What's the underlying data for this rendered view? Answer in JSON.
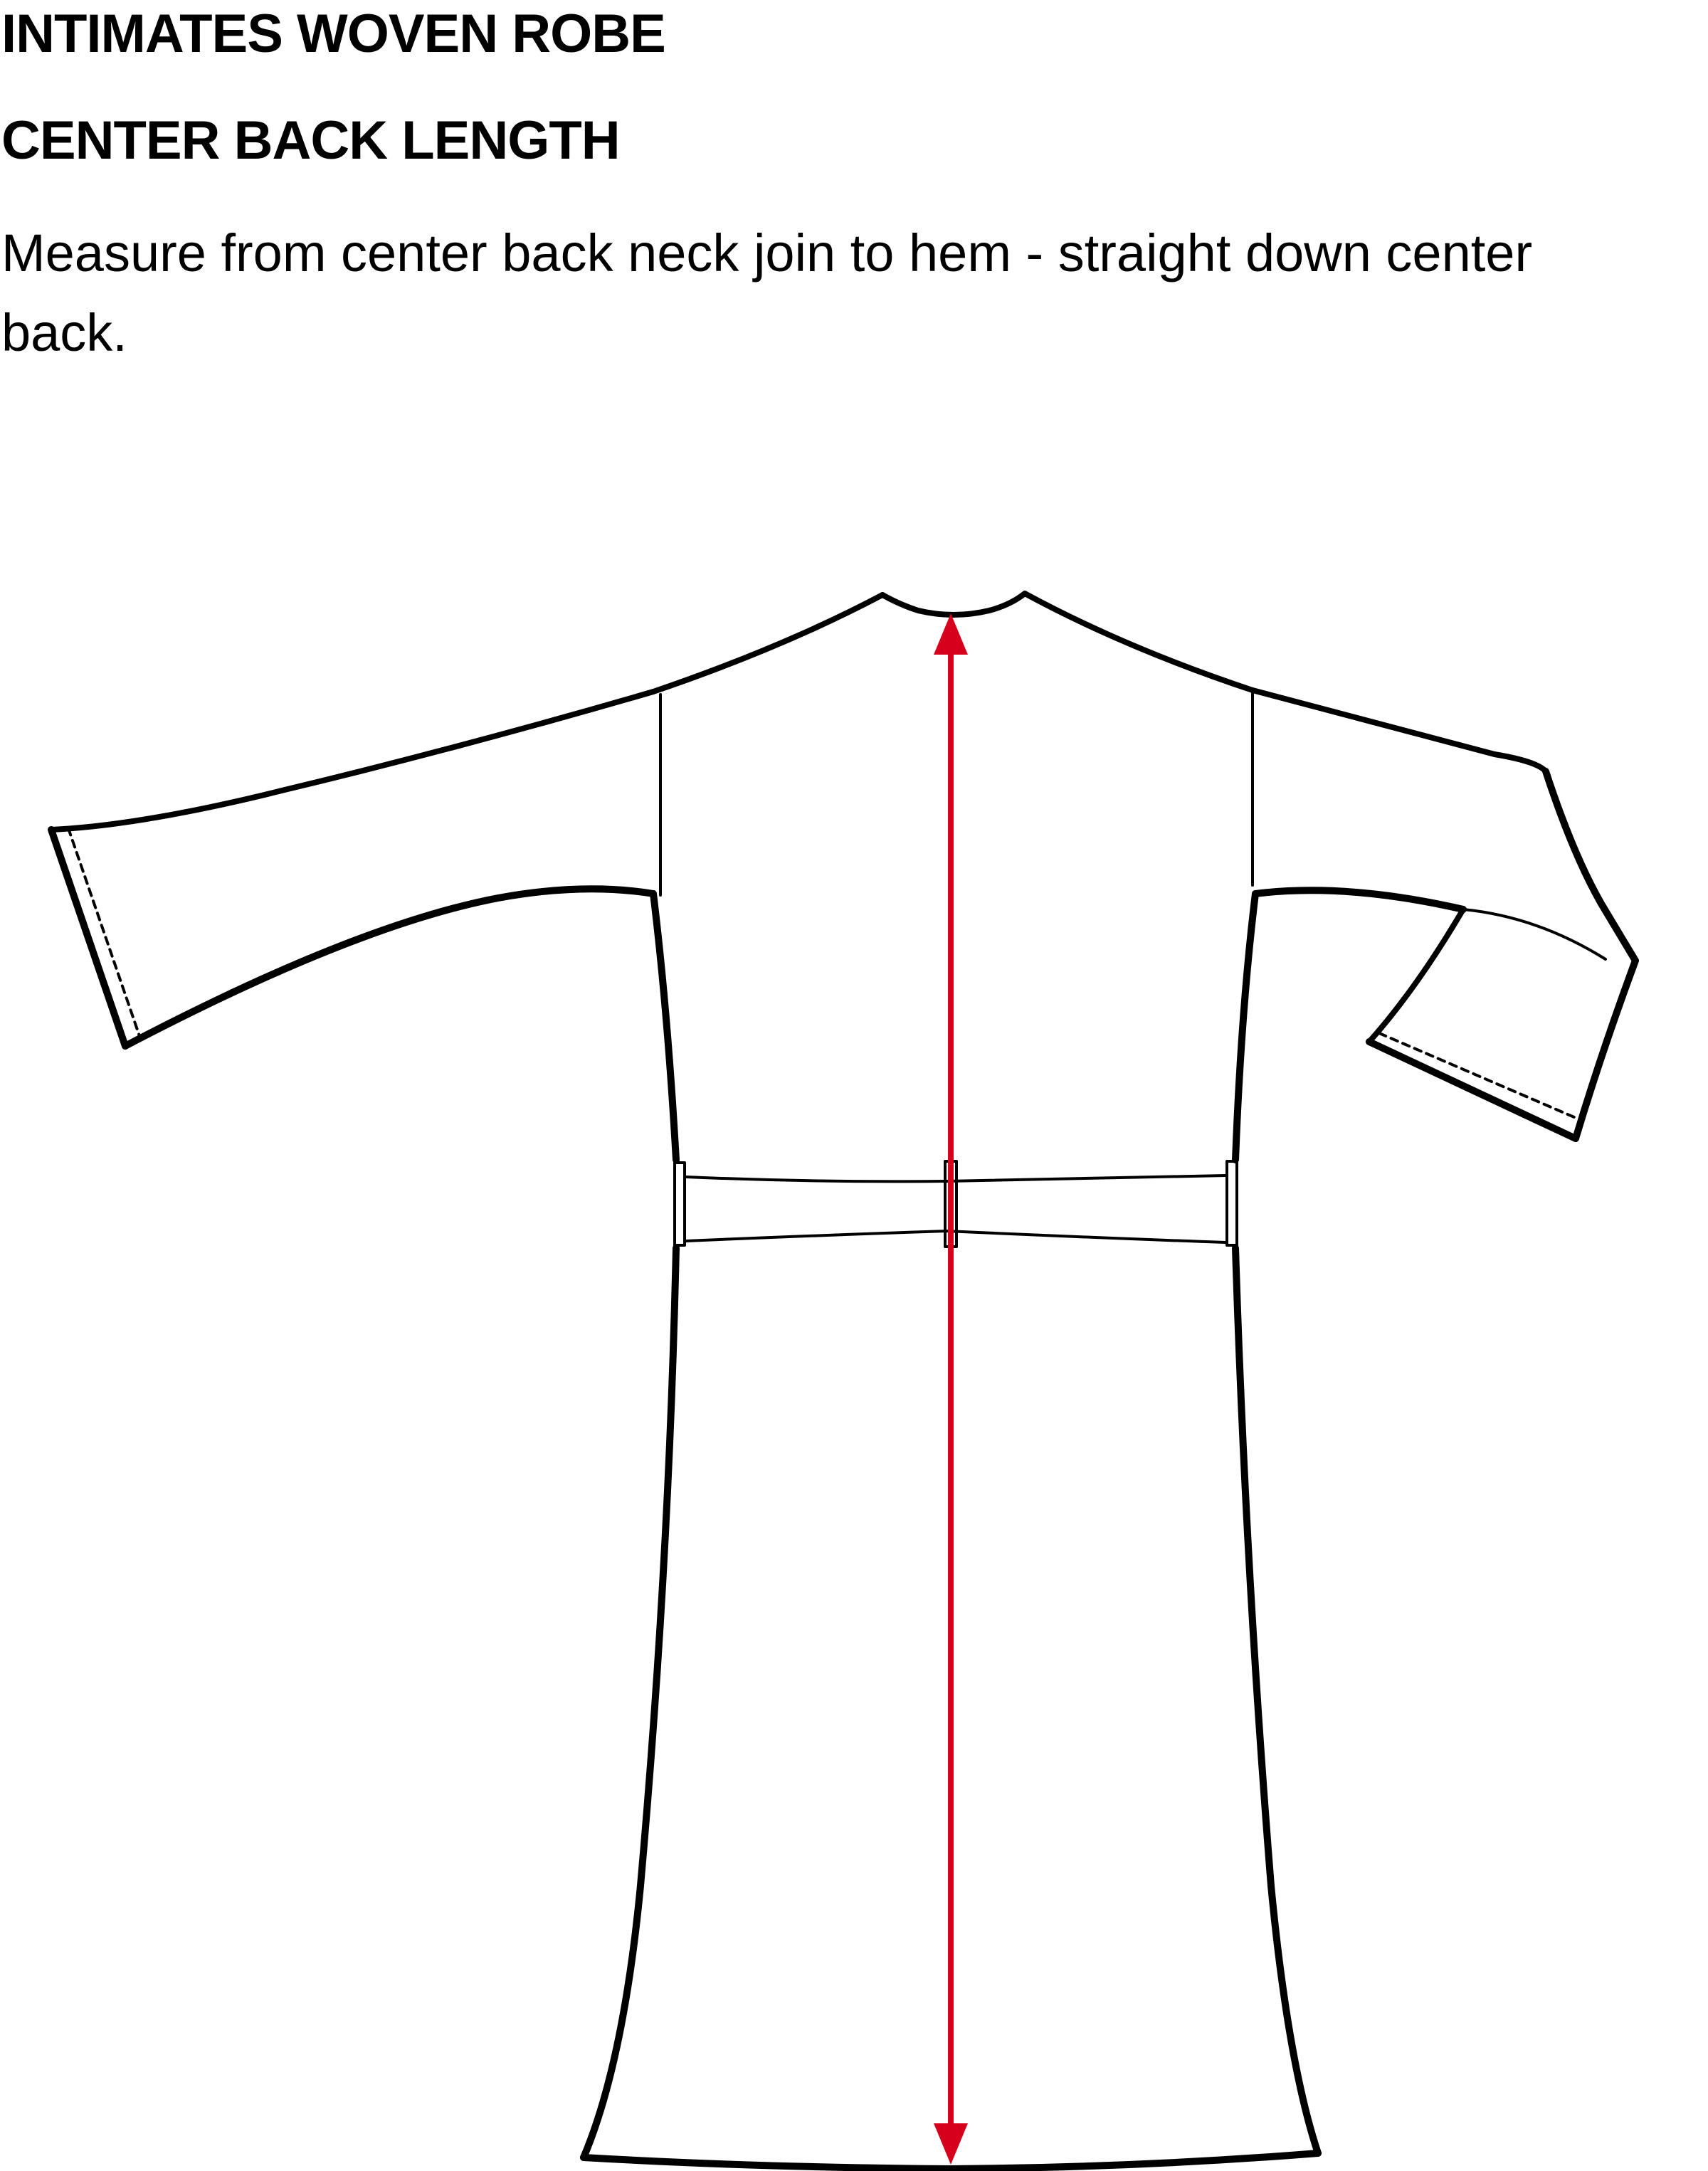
{
  "header": {
    "title": "INTIMATES WOVEN ROBE",
    "measurement_name": "CENTER BACK LENGTH",
    "instruction": "Measure from center back neck join to hem - straight down center back."
  },
  "diagram": {
    "garment": "robe, back view, with belt",
    "measurement_line": {
      "from": "center back neck join",
      "to": "hem",
      "color": "#d6001c"
    },
    "outline_color": "#000000"
  }
}
